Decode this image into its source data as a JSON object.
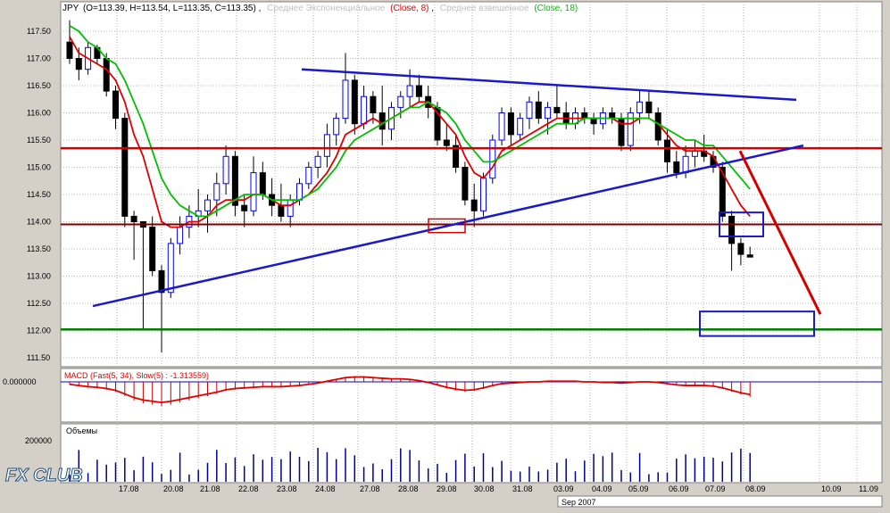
{
  "colors": {
    "background": "#ffffff",
    "frame": "#d4d0c8",
    "grid": "#b4b4b4",
    "candle": "#000000",
    "candle_up_border": "#0000ff",
    "ema": "#e00000",
    "sma": "#00c000",
    "trend_blue": "#1a1acc",
    "support_red": "#d40000",
    "support_darkred": "#800000",
    "target_green": "#008000",
    "macd_hist": "#cc0000",
    "volume": "#00008b"
  },
  "header": {
    "symbol": "JPY",
    "ohlc": "(O=113.39, H=113.54, L=113.35, C=113.35)",
    "sep": ",",
    "ema_label": "Среднее Экспоненциальное",
    "ema_param": "(Close, 8)",
    "wma_label": "Среднее взвешенное",
    "wma_param": "(Close, 18)"
  },
  "macd_label": "MACD (Fast(5, 34), Slow(5) : -1.313559)",
  "macd_zero_label": "0.000000",
  "volume_label": "Объемы",
  "volume_tick": "200000",
  "price_ticks": [
    "117.50",
    "117.00",
    "116.50",
    "116.00",
    "115.50",
    "115.00",
    "114.50",
    "114.00",
    "113.50",
    "113.00",
    "112.50",
    "112.00",
    "111.50"
  ],
  "date_ticks": [
    "17.08",
    "20.08",
    "21.08",
    "22.08",
    "23.08",
    "24.08",
    "27.08",
    "28.08",
    "29.08",
    "30.08",
    "31.08",
    "03.09",
    "04.09",
    "05.09",
    "06.09",
    "07.09",
    "08.09",
    "10.09",
    "11.09"
  ],
  "month_label": "Sep 2007",
  "logo_text": "FX CLUB",
  "chart_data": {
    "type": "candlestick",
    "title": "JPY",
    "ylim": [
      111.3,
      117.9
    ],
    "indicators": [
      "EMA(Close, 8)",
      "WMA(Close, 18)",
      "MACD(Fast(5,34), Slow(5))",
      "Volume"
    ],
    "candles": [
      {
        "o": 117.3,
        "h": 117.7,
        "l": 116.9,
        "c": 117.0
      },
      {
        "o": 117.0,
        "h": 117.2,
        "l": 116.6,
        "c": 116.8
      },
      {
        "o": 116.8,
        "h": 117.3,
        "l": 116.7,
        "c": 117.2
      },
      {
        "o": 117.2,
        "h": 117.25,
        "l": 116.9,
        "c": 117.0
      },
      {
        "o": 117.0,
        "h": 117.1,
        "l": 116.3,
        "c": 116.4
      },
      {
        "o": 116.4,
        "h": 116.5,
        "l": 115.7,
        "c": 115.9
      },
      {
        "o": 115.9,
        "h": 116.0,
        "l": 113.9,
        "c": 114.1
      },
      {
        "o": 114.1,
        "h": 114.2,
        "l": 113.3,
        "c": 114.0
      },
      {
        "o": 114.0,
        "h": 114.0,
        "l": 112.0,
        "c": 113.9
      },
      {
        "o": 113.9,
        "h": 114.1,
        "l": 113.0,
        "c": 113.1
      },
      {
        "o": 113.1,
        "h": 113.2,
        "l": 111.6,
        "c": 112.7
      },
      {
        "o": 112.7,
        "h": 113.7,
        "l": 112.6,
        "c": 113.6
      },
      {
        "o": 113.6,
        "h": 114.1,
        "l": 113.4,
        "c": 113.9
      },
      {
        "o": 113.9,
        "h": 114.3,
        "l": 113.7,
        "c": 114.1
      },
      {
        "o": 114.1,
        "h": 114.6,
        "l": 113.9,
        "c": 114.2
      },
      {
        "o": 114.2,
        "h": 114.5,
        "l": 113.8,
        "c": 114.4
      },
      {
        "o": 114.4,
        "h": 114.9,
        "l": 114.1,
        "c": 114.7
      },
      {
        "o": 114.7,
        "h": 115.4,
        "l": 114.5,
        "c": 115.2
      },
      {
        "o": 115.2,
        "h": 115.3,
        "l": 114.1,
        "c": 114.3
      },
      {
        "o": 114.3,
        "h": 114.5,
        "l": 113.9,
        "c": 114.2
      },
      {
        "o": 114.2,
        "h": 115.2,
        "l": 114.1,
        "c": 114.9
      },
      {
        "o": 114.9,
        "h": 115.1,
        "l": 114.4,
        "c": 114.5
      },
      {
        "o": 114.5,
        "h": 114.8,
        "l": 114.1,
        "c": 114.3
      },
      {
        "o": 114.3,
        "h": 114.7,
        "l": 114.0,
        "c": 114.1
      },
      {
        "o": 114.1,
        "h": 114.5,
        "l": 113.9,
        "c": 114.4
      },
      {
        "o": 114.4,
        "h": 114.8,
        "l": 114.3,
        "c": 114.7
      },
      {
        "o": 114.7,
        "h": 115.1,
        "l": 114.6,
        "c": 115.0
      },
      {
        "o": 115.0,
        "h": 115.3,
        "l": 114.8,
        "c": 115.2
      },
      {
        "o": 115.2,
        "h": 115.8,
        "l": 115.0,
        "c": 115.6
      },
      {
        "o": 115.6,
        "h": 116.0,
        "l": 115.4,
        "c": 115.9
      },
      {
        "o": 115.9,
        "h": 117.1,
        "l": 115.8,
        "c": 116.6
      },
      {
        "o": 116.6,
        "h": 116.7,
        "l": 115.6,
        "c": 115.8
      },
      {
        "o": 115.8,
        "h": 116.5,
        "l": 115.7,
        "c": 116.3
      },
      {
        "o": 116.3,
        "h": 116.4,
        "l": 115.8,
        "c": 116.0
      },
      {
        "o": 116.0,
        "h": 116.5,
        "l": 115.4,
        "c": 115.7
      },
      {
        "o": 115.7,
        "h": 116.2,
        "l": 115.5,
        "c": 116.1
      },
      {
        "o": 116.1,
        "h": 116.4,
        "l": 115.9,
        "c": 116.3
      },
      {
        "o": 116.3,
        "h": 116.8,
        "l": 116.1,
        "c": 116.5
      },
      {
        "o": 116.5,
        "h": 116.7,
        "l": 116.2,
        "c": 116.3
      },
      {
        "o": 116.3,
        "h": 116.5,
        "l": 115.9,
        "c": 116.1
      },
      {
        "o": 116.1,
        "h": 116.2,
        "l": 115.4,
        "c": 115.5
      },
      {
        "o": 115.5,
        "h": 115.8,
        "l": 115.3,
        "c": 115.4
      },
      {
        "o": 115.4,
        "h": 115.6,
        "l": 114.9,
        "c": 115.0
      },
      {
        "o": 115.0,
        "h": 115.1,
        "l": 114.3,
        "c": 114.4
      },
      {
        "o": 114.4,
        "h": 114.7,
        "l": 113.9,
        "c": 114.2
      },
      {
        "o": 114.2,
        "h": 114.9,
        "l": 114.1,
        "c": 114.8
      },
      {
        "o": 114.8,
        "h": 115.6,
        "l": 114.7,
        "c": 115.5
      },
      {
        "o": 115.5,
        "h": 116.1,
        "l": 115.4,
        "c": 116.0
      },
      {
        "o": 116.0,
        "h": 116.1,
        "l": 115.4,
        "c": 115.6
      },
      {
        "o": 115.6,
        "h": 116.0,
        "l": 115.5,
        "c": 115.9
      },
      {
        "o": 115.9,
        "h": 116.3,
        "l": 115.7,
        "c": 116.2
      },
      {
        "o": 116.2,
        "h": 116.4,
        "l": 115.8,
        "c": 115.9
      },
      {
        "o": 115.9,
        "h": 116.2,
        "l": 115.6,
        "c": 116.1
      },
      {
        "o": 116.1,
        "h": 116.5,
        "l": 115.9,
        "c": 116.0
      },
      {
        "o": 116.0,
        "h": 116.2,
        "l": 115.7,
        "c": 115.8
      },
      {
        "o": 115.8,
        "h": 116.1,
        "l": 115.7,
        "c": 116.0
      },
      {
        "o": 116.0,
        "h": 116.1,
        "l": 115.8,
        "c": 115.9
      },
      {
        "o": 115.9,
        "h": 116.0,
        "l": 115.6,
        "c": 115.8
      },
      {
        "o": 115.8,
        "h": 116.1,
        "l": 115.7,
        "c": 116.0
      },
      {
        "o": 116.0,
        "h": 116.1,
        "l": 115.8,
        "c": 115.9
      },
      {
        "o": 115.9,
        "h": 116.0,
        "l": 115.3,
        "c": 115.4
      },
      {
        "o": 115.4,
        "h": 116.1,
        "l": 115.3,
        "c": 116.0
      },
      {
        "o": 116.0,
        "h": 116.4,
        "l": 115.8,
        "c": 116.2
      },
      {
        "o": 116.2,
        "h": 116.4,
        "l": 115.9,
        "c": 116.0
      },
      {
        "o": 116.0,
        "h": 116.1,
        "l": 115.4,
        "c": 115.5
      },
      {
        "o": 115.5,
        "h": 115.7,
        "l": 114.9,
        "c": 115.1
      },
      {
        "o": 115.1,
        "h": 115.3,
        "l": 114.8,
        "c": 114.9
      },
      {
        "o": 114.9,
        "h": 115.4,
        "l": 114.8,
        "c": 115.2
      },
      {
        "o": 115.2,
        "h": 115.5,
        "l": 115.0,
        "c": 115.3
      },
      {
        "o": 115.3,
        "h": 115.6,
        "l": 115.1,
        "c": 115.2
      },
      {
        "o": 115.2,
        "h": 115.3,
        "l": 114.9,
        "c": 115.0
      },
      {
        "o": 115.0,
        "h": 115.1,
        "l": 114.0,
        "c": 114.1
      },
      {
        "o": 114.1,
        "h": 114.2,
        "l": 113.1,
        "c": 113.6
      },
      {
        "o": 113.6,
        "h": 113.7,
        "l": 113.2,
        "c": 113.4
      },
      {
        "o": 113.39,
        "h": 113.54,
        "l": 113.35,
        "c": 113.35
      }
    ],
    "ema": [
      117.4,
      117.1,
      117.0,
      116.9,
      116.8,
      116.6,
      116.2,
      115.6,
      115.2,
      114.6,
      114.0,
      113.9,
      113.9,
      114.0,
      114.0,
      114.1,
      114.3,
      114.4,
      114.4,
      114.4,
      114.5,
      114.5,
      114.4,
      114.3,
      114.3,
      114.4,
      114.5,
      114.7,
      114.9,
      115.2,
      115.6,
      115.7,
      115.8,
      115.9,
      115.8,
      115.9,
      116.0,
      116.1,
      116.2,
      116.2,
      116.0,
      115.8,
      115.6,
      115.2,
      114.9,
      114.8,
      115.0,
      115.3,
      115.4,
      115.5,
      115.6,
      115.7,
      115.8,
      115.9,
      115.9,
      115.9,
      115.9,
      115.9,
      115.9,
      115.9,
      115.8,
      115.8,
      115.9,
      115.9,
      115.8,
      115.6,
      115.4,
      115.3,
      115.3,
      115.3,
      115.2,
      114.9,
      114.6,
      114.3,
      114.1
    ],
    "sma": [
      117.6,
      117.5,
      117.3,
      117.2,
      117.0,
      116.9,
      116.6,
      116.2,
      115.8,
      115.3,
      114.8,
      114.5,
      114.3,
      114.2,
      114.1,
      114.1,
      114.2,
      114.3,
      114.4,
      114.5,
      114.5,
      114.5,
      114.4,
      114.4,
      114.4,
      114.4,
      114.5,
      114.6,
      114.8,
      115.0,
      115.3,
      115.5,
      115.6,
      115.7,
      115.8,
      115.9,
      116.0,
      116.1,
      116.1,
      116.2,
      116.1,
      116.0,
      115.8,
      115.5,
      115.3,
      115.1,
      115.1,
      115.2,
      115.3,
      115.4,
      115.5,
      115.6,
      115.7,
      115.8,
      115.8,
      115.8,
      115.9,
      115.9,
      115.9,
      115.9,
      115.9,
      115.9,
      115.9,
      115.9,
      115.8,
      115.7,
      115.6,
      115.5,
      115.5,
      115.4,
      115.4,
      115.2,
      115.0,
      114.8,
      114.6
    ],
    "annotations": {
      "resistance_line": [
        [
          116.8,
          0
        ],
        [
          116.2,
          1
        ]
      ],
      "support_lines_price": [
        115.35,
        113.95,
        112.02
      ],
      "ascending_trendline": [
        [
          112.45,
          0
        ],
        [
          115.4,
          1
        ]
      ]
    }
  }
}
